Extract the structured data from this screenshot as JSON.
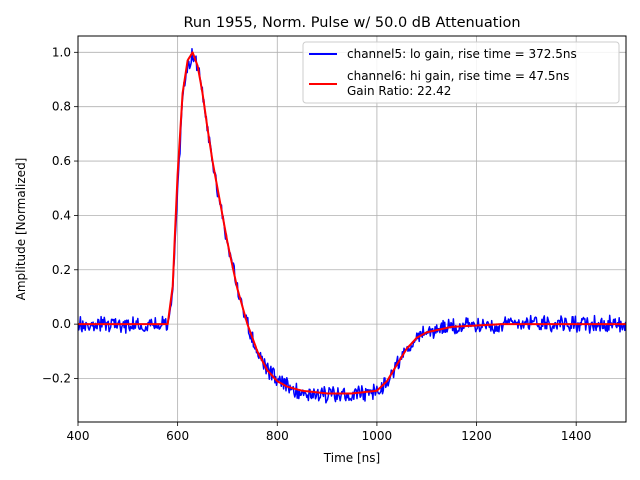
{
  "chart_data": {
    "type": "line",
    "title": "Run 1955, Norm. Pulse w/ 50.0 dB Attenuation",
    "xlabel": "Time [ns]",
    "ylabel": "Amplitude [Normalized]",
    "xlim": [
      400,
      1500
    ],
    "ylim": [
      -0.36,
      1.06
    ],
    "xticks": [
      400,
      600,
      800,
      1000,
      1200,
      1400
    ],
    "yticks": [
      -0.2,
      0.0,
      0.2,
      0.4,
      0.6,
      0.8,
      1.0
    ],
    "ytick_labels": [
      "−0.2",
      "0.0",
      "0.2",
      "0.4",
      "0.6",
      "0.8",
      "1.0"
    ],
    "grid": true,
    "legend_position": "top-right",
    "legend_extra_text": "Gain Ratio: 22.42",
    "series": [
      {
        "name": "channel5: lo gain, rise time = 372.5ns",
        "color": "#0000ff",
        "noisy": true,
        "x": [
          400,
          450,
          500,
          550,
          580,
          590,
          600,
          610,
          620,
          630,
          640,
          650,
          660,
          670,
          680,
          700,
          720,
          740,
          760,
          780,
          800,
          820,
          850,
          900,
          950,
          1000,
          1020,
          1040,
          1060,
          1080,
          1100,
          1150,
          1200,
          1250,
          1300,
          1350,
          1400,
          1450,
          1500
        ],
        "y": [
          0.0,
          0.0,
          0.0,
          0.0,
          0.0,
          0.12,
          0.5,
          0.82,
          0.96,
          0.99,
          0.95,
          0.85,
          0.72,
          0.6,
          0.5,
          0.3,
          0.13,
          0.0,
          -0.1,
          -0.17,
          -0.21,
          -0.23,
          -0.25,
          -0.26,
          -0.26,
          -0.25,
          -0.21,
          -0.15,
          -0.09,
          -0.05,
          -0.03,
          -0.01,
          -0.005,
          0.0,
          0.01,
          0.005,
          0.0,
          0.0,
          0.0
        ]
      },
      {
        "name": "channel6: hi gain, rise time = 47.5ns",
        "color": "#ff0000",
        "noisy": false,
        "x": [
          400,
          450,
          500,
          550,
          580,
          590,
          600,
          610,
          620,
          630,
          640,
          650,
          660,
          670,
          680,
          700,
          720,
          740,
          760,
          780,
          800,
          820,
          850,
          900,
          950,
          1000,
          1020,
          1040,
          1060,
          1080,
          1100,
          1150,
          1200,
          1250,
          1300,
          1350,
          1400,
          1450,
          1500
        ],
        "y": [
          0.0,
          0.0,
          0.0,
          0.0,
          0.0,
          0.14,
          0.55,
          0.85,
          0.97,
          1.0,
          0.95,
          0.85,
          0.72,
          0.6,
          0.5,
          0.3,
          0.13,
          0.0,
          -0.1,
          -0.17,
          -0.21,
          -0.23,
          -0.245,
          -0.255,
          -0.255,
          -0.245,
          -0.21,
          -0.15,
          -0.09,
          -0.05,
          -0.03,
          -0.01,
          -0.005,
          0.0,
          0.0,
          0.0,
          0.0,
          0.0,
          0.0
        ]
      }
    ]
  }
}
